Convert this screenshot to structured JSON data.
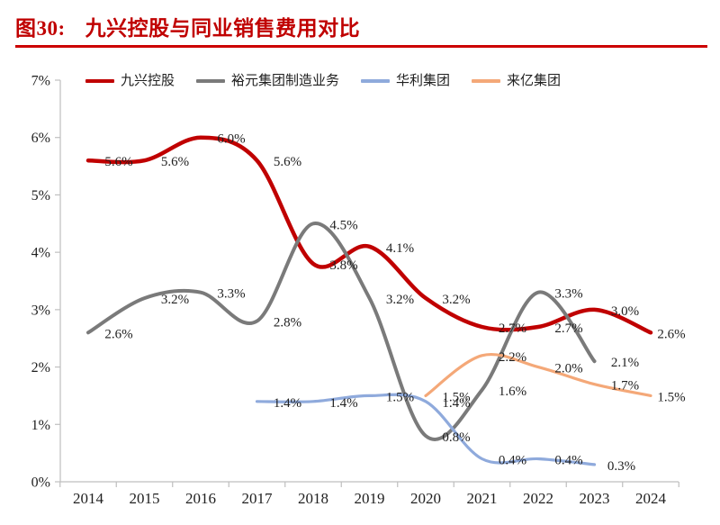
{
  "header": {
    "figure_label": "图30:",
    "title": "九兴控股与同业销售费用对比",
    "title_color": "#c00000",
    "rule_color": "#cc0000"
  },
  "legend": {
    "position": "top",
    "items": [
      {
        "label": "九兴控股",
        "color": "#c00000"
      },
      {
        "label": "裕元集团制造业务",
        "color": "#7a7a7a"
      },
      {
        "label": "华利集团",
        "color": "#8faadc"
      },
      {
        "label": "来亿集团",
        "color": "#f4a878"
      }
    ]
  },
  "chart_data": {
    "type": "line",
    "title": "九兴控股与同业销售费用对比",
    "categories": [
      "2014",
      "2015",
      "2016",
      "2017",
      "2018",
      "2019",
      "2020",
      "2021",
      "2022",
      "2023",
      "2024"
    ],
    "ylim": [
      0,
      7
    ],
    "y_ticks": [
      "0%",
      "1%",
      "2%",
      "3%",
      "4%",
      "5%",
      "6%",
      "7%"
    ],
    "grid": false,
    "legend_position": "top",
    "axis_color": "#bfbfbf",
    "label_color": "#1f1f1f",
    "series": [
      {
        "name": "九兴控股",
        "color": "#c00000",
        "stroke_width": 4.5,
        "start_index": 0,
        "values": [
          5.6,
          5.6,
          6.0,
          5.6,
          3.8,
          4.1,
          3.2,
          2.7,
          2.7,
          3.0,
          2.6
        ],
        "labels": [
          "5.6%",
          "5.6%",
          "6.0%",
          "5.6%",
          "3.8%",
          "4.1%",
          "3.2%",
          "2.7%",
          "2.7%",
          "3.0%",
          "2.6%"
        ],
        "label_offsets": {
          "10": [
            23,
            0
          ]
        }
      },
      {
        "name": "裕元集团制造业务",
        "color": "#7a7a7a",
        "stroke_width": 4,
        "start_index": 0,
        "values": [
          2.6,
          3.2,
          3.3,
          2.8,
          4.5,
          3.2,
          0.8,
          1.6,
          3.3,
          2.1
        ],
        "labels": [
          "2.6%",
          "3.2%",
          "3.3%",
          "2.8%",
          "4.5%",
          "3.2%",
          "0.8%",
          "1.6%",
          "3.3%",
          "2.1%"
        ],
        "label_offsets": {}
      },
      {
        "name": "华利集团",
        "color": "#8faadc",
        "stroke_width": 3.2,
        "start_index": 3,
        "values": [
          1.4,
          1.4,
          1.5,
          1.4,
          0.4,
          0.4,
          0.3
        ],
        "labels": [
          "1.4%",
          "1.4%",
          "1.5%",
          "1.4%",
          "0.4%",
          "0.4%",
          "0.3%"
        ],
        "label_offsets": {
          "6": [
            30,
            0
          ]
        }
      },
      {
        "name": "来亿集团",
        "color": "#f4a878",
        "stroke_width": 3.2,
        "start_index": 6,
        "values": [
          1.5,
          2.2,
          2.0,
          1.7,
          1.5
        ],
        "labels": [
          "1.5%",
          "2.2%",
          "2.0%",
          "1.7%",
          "1.5%"
        ],
        "label_offsets": {
          "4": [
            23,
            0
          ]
        }
      }
    ]
  }
}
